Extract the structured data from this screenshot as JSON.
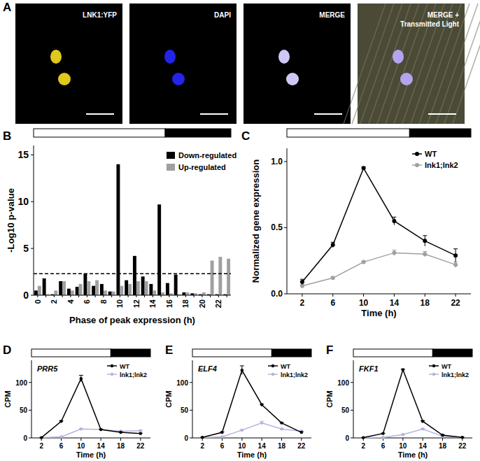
{
  "chart_data": [
    {
      "type": "image",
      "annotations": [
        "A"
      ],
      "panels": [
        {
          "label": [
            "LNK1:YFP"
          ],
          "color": "#e0c81c"
        },
        {
          "label": [
            "DAPI"
          ],
          "color": "#2424e8"
        },
        {
          "label": [
            "MERGE"
          ],
          "color": "#d0c8f4"
        },
        {
          "label": [
            "MERGE +",
            "Transmitted Light"
          ],
          "color": "#b4a4f0"
        }
      ]
    },
    {
      "type": "bar",
      "annotations": [
        "B"
      ],
      "categories": [
        "0",
        null,
        "2",
        null,
        "4",
        null,
        "6",
        null,
        "8",
        null,
        "10",
        null,
        "12",
        null,
        "14",
        null,
        "16",
        null,
        "18",
        null,
        "20",
        null,
        "22",
        null
      ],
      "series": [
        {
          "name": "Down-regulated",
          "color": "#000000",
          "values": [
            0.5,
            1.8,
            0.1,
            1.5,
            0.7,
            0.9,
            2.3,
            1.0,
            1.2,
            0.4,
            14.0,
            1.6,
            4.2,
            2.0,
            1.2,
            9.7,
            1.3,
            2.2,
            0.3,
            0.2,
            0.1,
            0.1,
            0.1,
            0.1
          ]
        },
        {
          "name": "Up-regulated",
          "color": "#a0a0a0",
          "values": [
            1.0,
            0.1,
            0.5,
            1.5,
            0.5,
            1.2,
            1.5,
            1.6,
            0.5,
            0.4,
            1.0,
            1.2,
            1.5,
            1.5,
            0.5,
            0.3,
            0.2,
            0.1,
            0.3,
            0.2,
            0.3,
            3.7,
            4.1,
            3.9
          ]
        }
      ],
      "ylim": [
        0,
        16
      ],
      "yticks": [
        0,
        5,
        10,
        15
      ],
      "x_label": "Phase of peak expression (h)",
      "y_label": "-Log10 p-value",
      "threshold": 2.3,
      "day_end": 16,
      "legend": "top-right"
    },
    {
      "type": "line",
      "annotations": [
        "C"
      ],
      "x": [
        2,
        6,
        10,
        14,
        18,
        22
      ],
      "series": [
        {
          "name": "WT",
          "color": "#000000",
          "marker": "circle",
          "values": [
            0.09,
            0.37,
            0.95,
            0.55,
            0.4,
            0.29
          ],
          "errors": [
            0.02,
            0.02,
            0.01,
            0.03,
            0.04,
            0.05
          ]
        },
        {
          "name": "lnk1;lnk2",
          "color": "#a0a0a0",
          "marker": "circle",
          "values": [
            0.06,
            0.12,
            0.24,
            0.31,
            0.3,
            0.22
          ],
          "errors": [
            0.01,
            0.01,
            0.01,
            0.02,
            0.02,
            0.02
          ]
        }
      ],
      "xlim": [
        0,
        24
      ],
      "xticks": [
        2,
        6,
        10,
        14,
        18,
        22
      ],
      "ylim": [
        0,
        1.1
      ],
      "yticks": [
        {
          "value": 0,
          "label": "0.0"
        },
        {
          "value": 0.5,
          "label": "0.5"
        },
        {
          "value": 1,
          "label": "1.0"
        }
      ],
      "x_label": "Time (h)",
      "y_label": "Normalized gene expression",
      "day_end": 16,
      "legend": "top-right"
    },
    {
      "type": "line",
      "annotations": [
        "D",
        "PRR5"
      ],
      "x": [
        2,
        6,
        10,
        14,
        18,
        22
      ],
      "series": [
        {
          "name": "WT",
          "color": "#000000",
          "marker": "circle",
          "values": [
            0.5,
            30,
            107,
            15,
            10,
            8
          ],
          "errors": [
            0.2,
            1,
            6,
            1,
            1,
            0.5
          ]
        },
        {
          "name": "lnk1;lnk2",
          "color": "#b4b4dc",
          "marker": "circle",
          "values": [
            0.5,
            2,
            16,
            15,
            12,
            13
          ],
          "errors": [
            0.1,
            0.3,
            1,
            1,
            1,
            1
          ]
        }
      ],
      "xlim": [
        0,
        24
      ],
      "xticks": [
        2,
        6,
        10,
        14,
        18,
        22
      ],
      "ylim": [
        0,
        140
      ],
      "yticks": [
        0,
        50,
        100
      ],
      "x_label": "Time (h)",
      "y_label": "CPM",
      "day_end": 16,
      "legend": "top-right"
    },
    {
      "type": "line",
      "annotations": [
        "E",
        "ELF4"
      ],
      "x": [
        2,
        6,
        10,
        14,
        18,
        22
      ],
      "series": [
        {
          "name": "WT",
          "color": "#000000",
          "marker": "circle",
          "values": [
            1,
            10,
            122,
            60,
            27,
            10
          ],
          "errors": [
            0.2,
            1,
            8,
            1,
            1,
            1
          ]
        },
        {
          "name": "lnk1;lnk2",
          "color": "#b4b4dc",
          "marker": "circle",
          "values": [
            0.5,
            2,
            14,
            27,
            16,
            12
          ],
          "errors": [
            0.1,
            0.3,
            1,
            3,
            1,
            1
          ]
        }
      ],
      "xlim": [
        0,
        24
      ],
      "xticks": [
        2,
        6,
        10,
        14,
        18,
        22
      ],
      "ylim": [
        0,
        140
      ],
      "yticks": [
        0,
        50,
        100
      ],
      "x_label": "Time (h)",
      "y_label": "CPM",
      "day_end": 16,
      "legend": "top-right"
    },
    {
      "type": "line",
      "annotations": [
        "F",
        "FKF1"
      ],
      "x": [
        2,
        6,
        10,
        14,
        18,
        22
      ],
      "series": [
        {
          "name": "WT",
          "color": "#000000",
          "marker": "circle",
          "values": [
            0.5,
            8,
            123,
            30,
            5,
            1
          ],
          "errors": [
            0.1,
            0.5,
            1,
            1,
            0.5,
            0.2
          ]
        },
        {
          "name": "lnk1;lnk2",
          "color": "#b4b4dc",
          "marker": "circle",
          "values": [
            0.2,
            1,
            6,
            16,
            3,
            1
          ],
          "errors": [
            0.1,
            0.2,
            0.5,
            1,
            0.5,
            0.2
          ]
        }
      ],
      "xlim": [
        0,
        24
      ],
      "xticks": [
        2,
        6,
        10,
        14,
        18,
        22
      ],
      "ylim": [
        0,
        140
      ],
      "yticks": [
        0,
        50,
        100
      ],
      "x_label": "Time (h)",
      "y_label": "CPM",
      "day_end": 16,
      "legend": "top-right"
    }
  ]
}
